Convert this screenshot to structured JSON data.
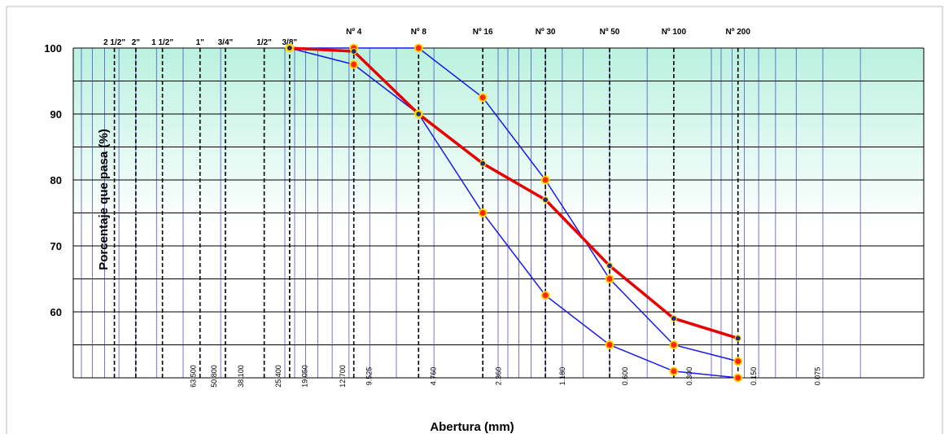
{
  "chart_data": {
    "type": "line",
    "y_label": "Porcentaje que pasa (%)",
    "x_label": "Abertura (mm)",
    "log_x": true,
    "ylim": [
      50,
      100
    ],
    "yticks": [
      60,
      70,
      80,
      90,
      100
    ],
    "minor_yticks": [
      55,
      65,
      75,
      85,
      95
    ],
    "xlim": [
      100,
      0.01
    ],
    "sieves": [
      {
        "name": "2 1/2\"",
        "mm": 63
      },
      {
        "name": "2\"",
        "mm": 50
      },
      {
        "name": "1 1/2\"",
        "mm": 37.5
      },
      {
        "name": "1\"",
        "mm": 25
      },
      {
        "name": "3/4\"",
        "mm": 19
      },
      {
        "name": "1/2\"",
        "mm": 12.5
      },
      {
        "name": "3/8\"",
        "mm": 9.5
      },
      {
        "name": "Nº 4",
        "mm": 4.75
      },
      {
        "name": "Nº 8",
        "mm": 2.36
      },
      {
        "name": "Nº 16",
        "mm": 1.18
      },
      {
        "name": "Nº 30",
        "mm": 0.6
      },
      {
        "name": "Nº 50",
        "mm": 0.3
      },
      {
        "name": "Nº 100",
        "mm": 0.15
      },
      {
        "name": "Nº 200",
        "mm": 0.075
      }
    ],
    "xticks": [
      {
        "value": 63.5,
        "label": "63.500"
      },
      {
        "value": 50.8,
        "label": "50.800"
      },
      {
        "value": 38.1,
        "label": "38.100"
      },
      {
        "value": 25.4,
        "label": "25.400"
      },
      {
        "value": 19.05,
        "label": "19.050"
      },
      {
        "value": 12.7,
        "label": "12.700"
      },
      9.525,
      {
        "value": 4.76,
        "label": "4.760"
      },
      {
        "value": 2.36,
        "label": "2.360"
      },
      {
        "value": 1.18,
        "label": "1.180"
      },
      {
        "value": 0.6,
        "label": "0.600"
      },
      {
        "value": 0.3,
        "label": "0.300"
      },
      {
        "value": 0.15,
        "label": "0.150"
      },
      0.075
    ],
    "x": [
      9.5,
      4.75,
      2.36,
      1.18,
      0.6,
      0.3,
      0.15,
      0.075
    ],
    "series": [
      {
        "color": "#1a1ae6",
        "marker": "#ff2a00",
        "values": [
          100,
          100,
          100,
          92.5,
          80,
          65,
          55,
          52.5
        ]
      },
      {
        "color": "#1a1ae6",
        "marker": "#ff2a00",
        "values": [
          100,
          97.5,
          90,
          75,
          62.5,
          55,
          51,
          50
        ]
      },
      {
        "color": "#e60000",
        "marker": "#1a2a80",
        "values": [
          100,
          99.5,
          90,
          82.5,
          77,
          67,
          59,
          56
        ]
      }
    ]
  }
}
